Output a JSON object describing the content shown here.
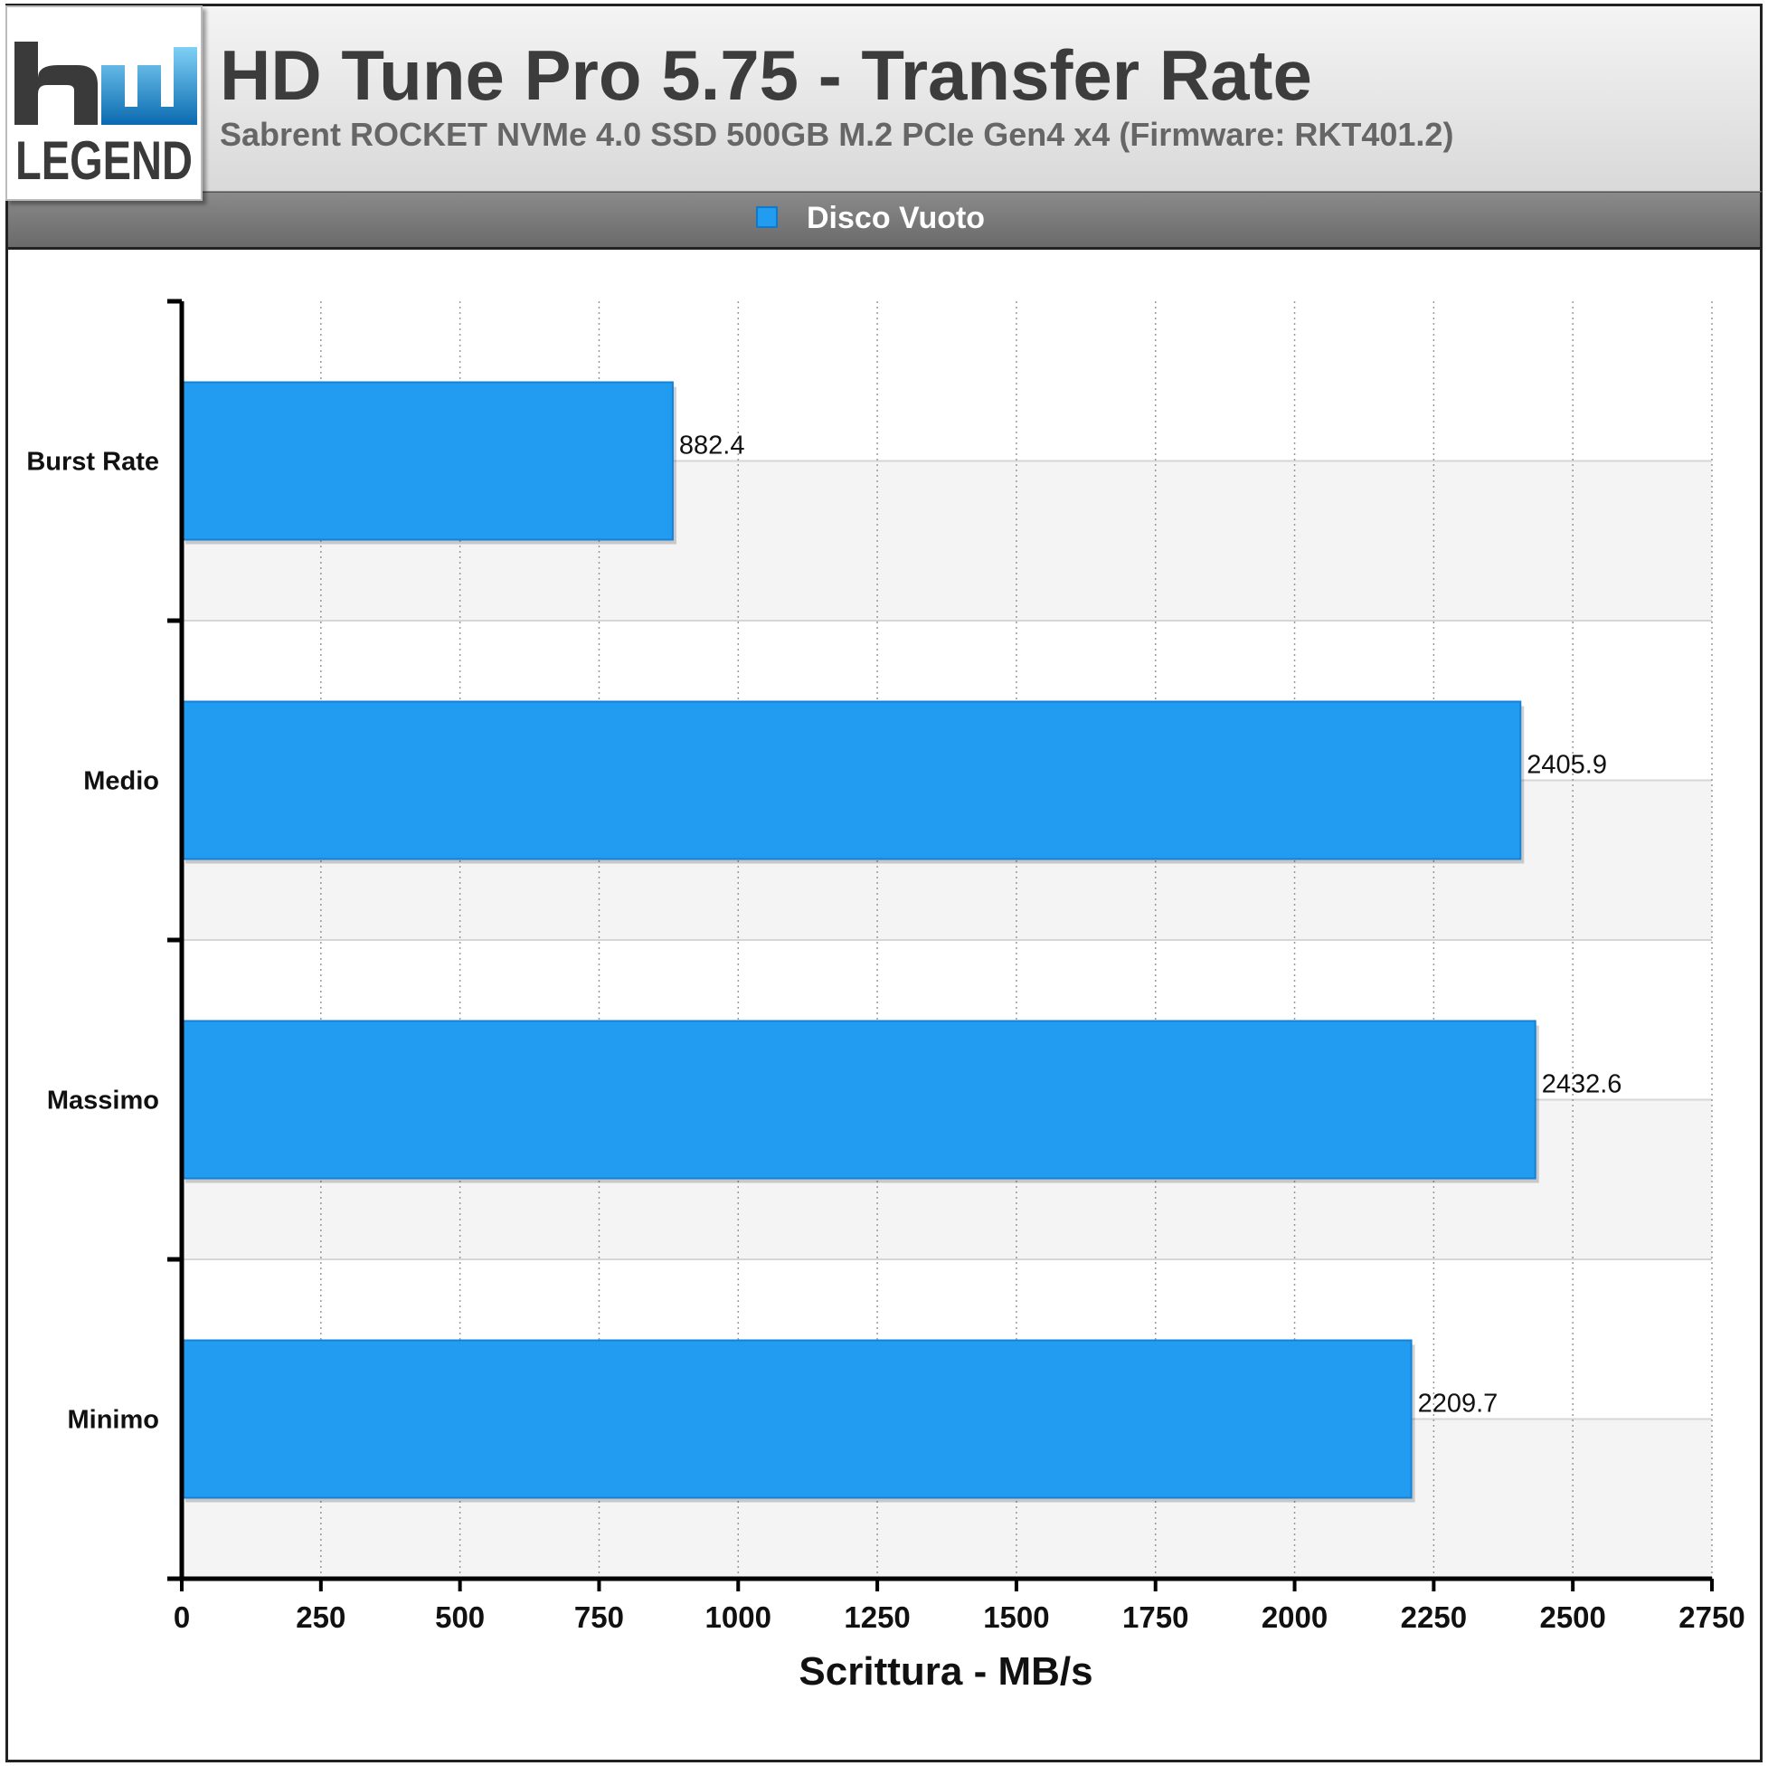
{
  "header": {
    "logo_text": "LEGEND",
    "title": "HD Tune Pro 5.75 - Transfer Rate",
    "subtitle": "Sabrent ROCKET NVMe 4.0 SSD 500GB M.2 PCIe Gen4 x4 (Firmware: RKT401.2)"
  },
  "legend": {
    "label": "Disco Vuoto",
    "color": "#229cf0"
  },
  "chart_data": {
    "type": "bar",
    "orientation": "horizontal",
    "title": "HD Tune Pro 5.75 - Transfer Rate",
    "subtitle": "Sabrent ROCKET NVMe 4.0 SSD 500GB M.2 PCIe Gen4 x4 (Firmware: RKT401.2)",
    "categories": [
      "Burst Rate",
      "Medio",
      "Massimo",
      "Minimo"
    ],
    "series": [
      {
        "name": "Disco Vuoto",
        "values": [
          882.4,
          2405.9,
          2432.6,
          2209.7
        ],
        "color": "#229cf0"
      }
    ],
    "value_labels": [
      "882.4",
      "2405.9",
      "2432.6",
      "2209.7"
    ],
    "xlabel": "Scrittura - MB/s",
    "ylabel": "",
    "xlim": [
      0,
      2750
    ],
    "xticks": [
      "0",
      "250",
      "500",
      "750",
      "1000",
      "1250",
      "1500",
      "1750",
      "2000",
      "2250",
      "2500",
      "2750"
    ],
    "grid": true,
    "legend_position": "top-center"
  }
}
